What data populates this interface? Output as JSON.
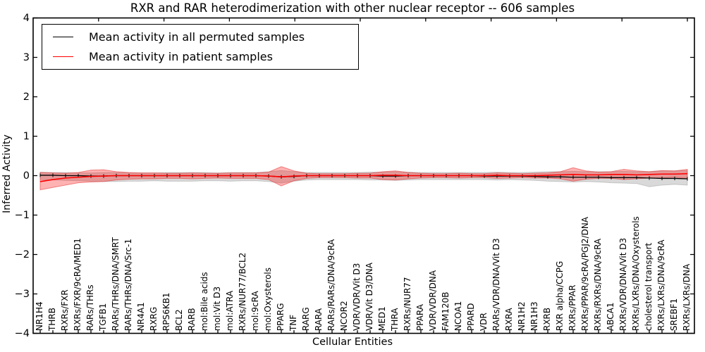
{
  "figure": {
    "title": "RXR and RAR heterodimerization with other nuclear receptor -- 606 samples"
  },
  "axes": {
    "xlabel": "Cellular Entities",
    "ylabel": "Inferred Activity",
    "ylim": [
      -4,
      4
    ],
    "yticks": [
      4,
      3,
      2,
      1,
      0,
      -1,
      -2,
      -3,
      -4
    ]
  },
  "legend": {
    "items": [
      {
        "label": "Mean activity in all permuted samples",
        "color": "#000000"
      },
      {
        "label": "Mean activity in patient samples",
        "color": "#ff0000"
      }
    ]
  },
  "chart_data": {
    "type": "line",
    "title": "RXR and RAR heterodimerization with other nuclear receptor -- 606 samples",
    "xlabel": "Cellular Entities",
    "ylabel": "Inferred Activity",
    "ylim": [
      -4,
      4
    ],
    "grid": false,
    "legend_position": "upper left",
    "categories": [
      "NR1H4",
      "THRB",
      "RXRs/FXR",
      "RXRs/FXR/9cRA/MED1",
      "RARs/THRs",
      "TGFB1",
      "RARs/THRs/DNA/SMRT",
      "RARs/THRs/DNA/Src-1",
      "NR4A1",
      "RXRG",
      "RPS6KB1",
      "BCL2",
      "RARB",
      "mol:Bile acids",
      "mol:Vit D3",
      "mol:ATRA",
      "RXRs/NUR77/BCL2",
      "mol:9cRA",
      "mol:Oxysterols",
      "PPARG",
      "TNF",
      "RARG",
      "RARA",
      "RARs/RARs/DNA/9cRA",
      "NCOR2",
      "VDR/VDR/Vit D3",
      "VDR/Vit D3/DNA",
      "MED1",
      "THRA",
      "RXRs/NUR77",
      "PPARA",
      "VDR/VDR/DNA",
      "FAM120B",
      "NCOA1",
      "PPARD",
      "VDR",
      "RARs/VDR/DNA/Vit D3",
      "RXRA",
      "NR1H2",
      "NR1H3",
      "RXRB",
      "RXR alpha/CCPG",
      "RXRs/PPAR",
      "RXRs/PPAR/9cRA/PGJ2/DNA",
      "RXRs/RXRs/DNA/9cRA",
      "ABCA1",
      "RXRs/VDR/DNA/Vit D3",
      "RXRs/LXRs/DNA/Oxysterols",
      "cholesterol transport",
      "RXRs/LXRs/DNA/9cRA",
      "SREBF1",
      "RXRs/LXRs/DNA"
    ],
    "series": [
      {
        "name": "Mean activity in all permuted samples",
        "color": "#000000",
        "values": [
          0.01,
          0.01,
          0,
          0,
          -0.01,
          -0.01,
          0,
          0,
          0,
          0,
          0,
          0,
          0,
          0,
          0,
          0,
          0,
          0,
          -0.01,
          -0.03,
          -0.02,
          0,
          0,
          0,
          0,
          0,
          0,
          -0.01,
          -0.01,
          0,
          0,
          0,
          0,
          0,
          0,
          -0.01,
          -0.01,
          -0.01,
          -0.01,
          -0.02,
          -0.03,
          -0.03,
          -0.04,
          -0.04,
          -0.04,
          -0.05,
          -0.05,
          -0.05,
          -0.06,
          -0.07,
          -0.07,
          -0.08
        ]
      },
      {
        "name": "Mean activity in patient samples",
        "color": "#ff0000",
        "values": [
          -0.15,
          -0.1,
          -0.06,
          -0.04,
          -0.02,
          -0.01,
          0,
          0,
          0,
          0,
          0,
          0,
          0,
          0,
          0,
          0,
          0,
          0,
          -0.01,
          -0.03,
          -0.01,
          0,
          0,
          0,
          0,
          0,
          0,
          0.01,
          0.01,
          0,
          0,
          0,
          0,
          0,
          0,
          0,
          0.01,
          0,
          0,
          0,
          0.01,
          0.02,
          0.03,
          0.02,
          0.02,
          0.03,
          0.03,
          0.02,
          0.03,
          0.04,
          0.04,
          0.05
        ]
      }
    ],
    "bands": [
      {
        "name": "permuted samples range",
        "fill": "rgba(130,130,130,0.30)",
        "edge": "rgba(130,130,130,0.35)",
        "upper": [
          0.09,
          0.08,
          0.08,
          0.07,
          0.07,
          0.08,
          0.08,
          0.07,
          0.07,
          0.07,
          0.08,
          0.08,
          0.08,
          0.08,
          0.07,
          0.08,
          0.08,
          0.08,
          0.1,
          0.13,
          0.1,
          0.08,
          0.08,
          0.08,
          0.08,
          0.08,
          0.09,
          0.09,
          0.1,
          0.09,
          0.08,
          0.08,
          0.08,
          0.08,
          0.08,
          0.08,
          0.09,
          0.08,
          0.08,
          0.09,
          0.1,
          0.1,
          0.11,
          0.1,
          0.1,
          0.1,
          0.11,
          0.1,
          0.1,
          0.12,
          0.12,
          0.13
        ],
        "lower": [
          -0.1,
          -0.11,
          -0.12,
          -0.13,
          -0.14,
          -0.15,
          -0.15,
          -0.14,
          -0.14,
          -0.13,
          -0.14,
          -0.14,
          -0.14,
          -0.13,
          -0.13,
          -0.14,
          -0.13,
          -0.13,
          -0.15,
          -0.19,
          -0.14,
          -0.11,
          -0.1,
          -0.1,
          -0.1,
          -0.1,
          -0.11,
          -0.11,
          -0.12,
          -0.11,
          -0.1,
          -0.1,
          -0.1,
          -0.1,
          -0.1,
          -0.1,
          -0.11,
          -0.1,
          -0.11,
          -0.12,
          -0.14,
          -0.15,
          -0.16,
          -0.15,
          -0.16,
          -0.18,
          -0.19,
          -0.2,
          -0.28,
          -0.24,
          -0.22,
          -0.24
        ]
      },
      {
        "name": "patient samples range",
        "fill": "rgba(255,20,20,0.33)",
        "edge": "rgba(225,50,50,0.55)",
        "upper": [
          0.08,
          0.07,
          0.06,
          0.08,
          0.14,
          0.15,
          0.1,
          0.08,
          0.07,
          0.07,
          0.06,
          0.06,
          0.07,
          0.06,
          0.06,
          0.07,
          0.07,
          0.07,
          0.09,
          0.23,
          0.12,
          0.06,
          0.05,
          0.05,
          0.05,
          0.06,
          0.06,
          0.1,
          0.12,
          0.08,
          0.06,
          0.05,
          0.05,
          0.06,
          0.05,
          0.05,
          0.07,
          0.06,
          0.05,
          0.06,
          0.07,
          0.1,
          0.2,
          0.12,
          0.09,
          0.1,
          0.16,
          0.12,
          0.1,
          0.13,
          0.12,
          0.16
        ],
        "lower": [
          -0.36,
          -0.3,
          -0.24,
          -0.18,
          -0.16,
          -0.15,
          -0.11,
          -0.09,
          -0.08,
          -0.08,
          -0.07,
          -0.07,
          -0.08,
          -0.07,
          -0.06,
          -0.07,
          -0.07,
          -0.07,
          -0.1,
          -0.26,
          -0.13,
          -0.07,
          -0.05,
          -0.05,
          -0.05,
          -0.06,
          -0.06,
          -0.1,
          -0.11,
          -0.08,
          -0.06,
          -0.05,
          -0.05,
          -0.06,
          -0.05,
          -0.05,
          -0.07,
          -0.06,
          -0.05,
          -0.06,
          -0.06,
          -0.08,
          -0.14,
          -0.09,
          -0.07,
          -0.07,
          -0.1,
          -0.08,
          -0.06,
          -0.06,
          -0.04,
          -0.07
        ]
      }
    ]
  }
}
